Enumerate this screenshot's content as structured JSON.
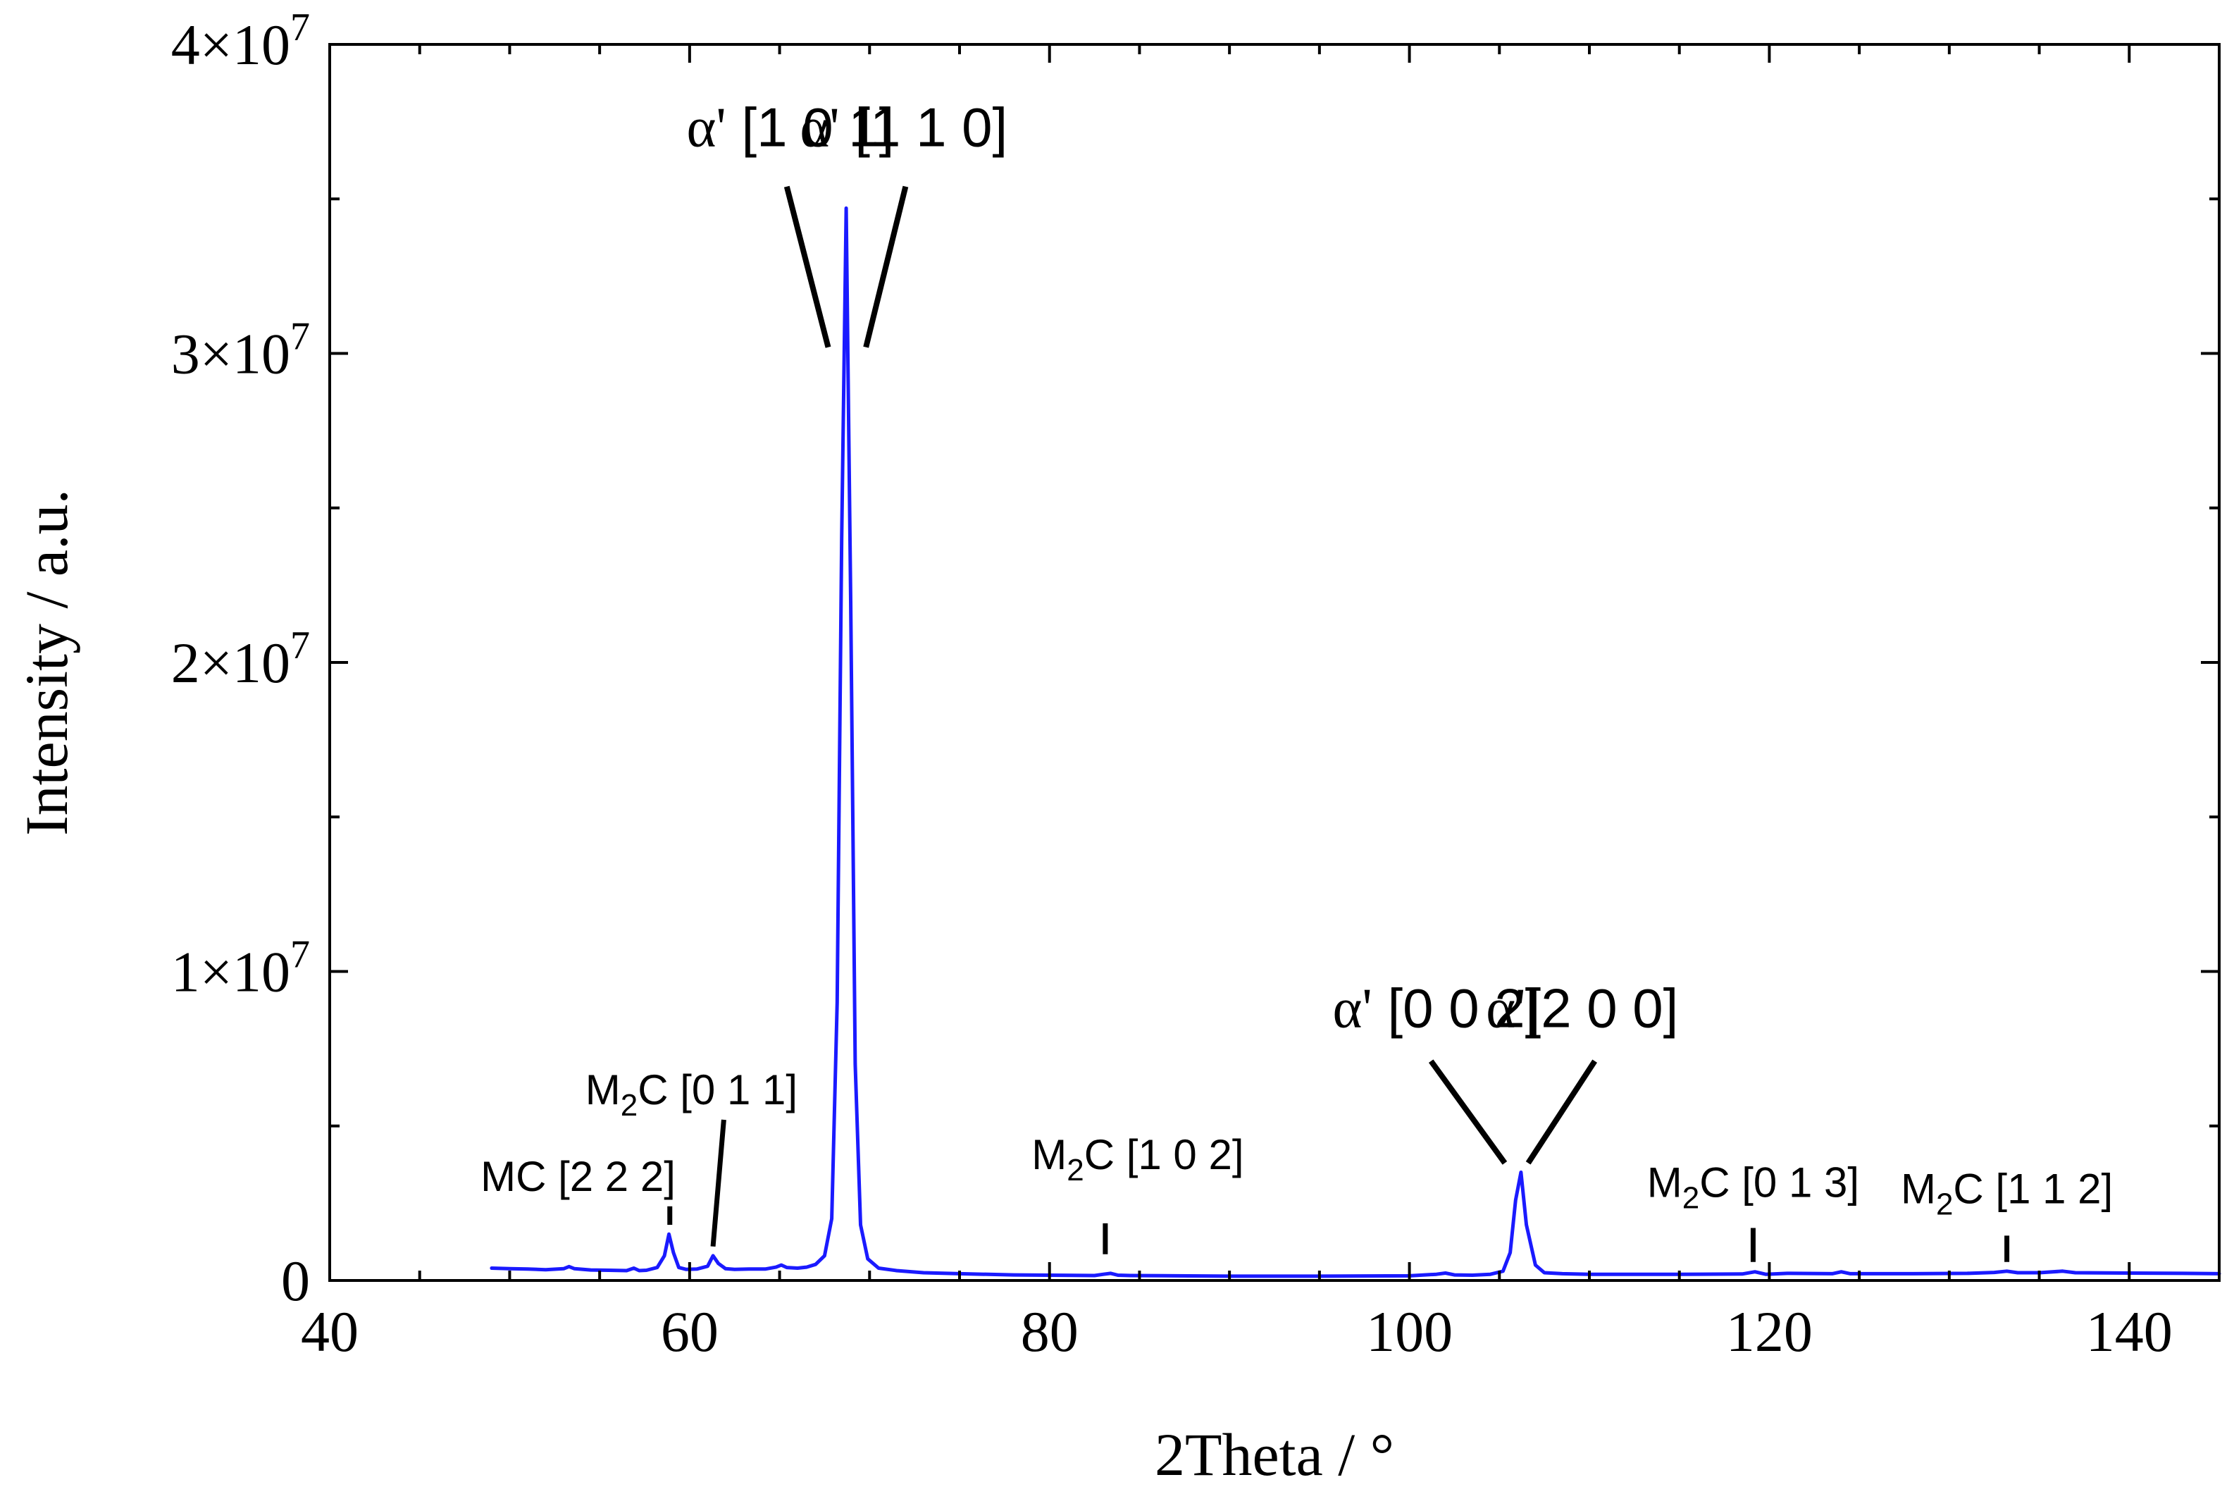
{
  "chart_data": {
    "type": "line",
    "xlabel": "2Theta / °",
    "ylabel": "Intensity / a.u.",
    "xlim": [
      40,
      145
    ],
    "ylim": [
      0,
      40000000
    ],
    "grid": false,
    "x_ticks": [
      40,
      60,
      80,
      100,
      120,
      140
    ],
    "x_tick_labels": [
      "40",
      "60",
      "80",
      "100",
      "120",
      "140"
    ],
    "y_ticks": [
      0,
      10000000,
      20000000,
      30000000,
      40000000
    ],
    "y_tick_labels": [
      {
        "mantissa": "0",
        "base": "",
        "exp": ""
      },
      {
        "mantissa": "1",
        "base": "×10",
        "exp": "7"
      },
      {
        "mantissa": "2",
        "base": "×10",
        "exp": "7"
      },
      {
        "mantissa": "3",
        "base": "×10",
        "exp": "7"
      },
      {
        "mantissa": "4",
        "base": "×10",
        "exp": "7"
      }
    ],
    "series": [
      {
        "color": "#1a1aff",
        "x": [
          49.0,
          50.0,
          51.0,
          52.0,
          53.0,
          53.3,
          53.6,
          54.5,
          55.5,
          56.5,
          56.9,
          57.2,
          57.6,
          58.2,
          58.6,
          58.85,
          59.1,
          59.4,
          59.8,
          60.4,
          61.0,
          61.3,
          61.6,
          62.0,
          62.5,
          63.3,
          64.2,
          64.8,
          65.1,
          65.4,
          66.0,
          66.5,
          67.0,
          67.5,
          67.9,
          68.2,
          68.45,
          68.7,
          68.95,
          69.2,
          69.5,
          69.9,
          70.5,
          71.5,
          73.0,
          75.0,
          78.0,
          80.0,
          82.5,
          83.0,
          83.4,
          83.8,
          84.5,
          87.0,
          90.0,
          95.0,
          100.0,
          101.5,
          102.0,
          102.5,
          103.5,
          104.5,
          105.2,
          105.6,
          105.9,
          106.2,
          106.5,
          107.0,
          107.5,
          108.5,
          110.0,
          115.0,
          118.5,
          119.2,
          119.8,
          121.0,
          123.5,
          124.0,
          124.5,
          128.0,
          131.0,
          132.5,
          133.2,
          133.8,
          135.0,
          136.3,
          137.0,
          140.0,
          143.0,
          145.0
        ],
        "y": [
          400000,
          380000,
          370000,
          350000,
          380000,
          450000,
          380000,
          340000,
          330000,
          320000,
          400000,
          320000,
          330000,
          420000,
          800000,
          1500000,
          900000,
          420000,
          360000,
          370000,
          460000,
          800000,
          550000,
          380000,
          360000,
          370000,
          370000,
          430000,
          500000,
          420000,
          400000,
          430000,
          520000,
          800000,
          2000000,
          9000000,
          24000000,
          34700000,
          22000000,
          7000000,
          1800000,
          700000,
          400000,
          320000,
          250000,
          220000,
          180000,
          170000,
          160000,
          200000,
          230000,
          170000,
          160000,
          150000,
          140000,
          140000,
          150000,
          200000,
          240000,
          180000,
          170000,
          200000,
          300000,
          900000,
          2600000,
          3500000,
          1800000,
          500000,
          250000,
          220000,
          200000,
          200000,
          210000,
          280000,
          200000,
          230000,
          220000,
          280000,
          220000,
          220000,
          230000,
          260000,
          300000,
          250000,
          250000,
          300000,
          250000,
          240000,
          230000,
          220000
        ]
      }
    ],
    "annotations": [
      {
        "id": "alpha-101",
        "greek": "α'",
        "text": " [1 0 1]",
        "label_x": 65.6,
        "label_y": 36700000,
        "line_from": [
          65.4,
          35400000
        ],
        "line_to": [
          67.7,
          30200000
        ],
        "style": "large"
      },
      {
        "id": "alpha-110",
        "greek": "α'",
        "text": " [1 1 0]",
        "label_x": 71.9,
        "label_y": 36700000,
        "line_from": [
          72.0,
          35400000
        ],
        "line_to": [
          69.8,
          30200000
        ],
        "style": "large"
      },
      {
        "id": "alpha-002",
        "greek": "α'",
        "text": " [0 0 2]",
        "label_x": 101.5,
        "label_y": 8200000,
        "line_from": [
          101.2,
          7100000
        ],
        "line_to": [
          105.3,
          3800000
        ],
        "style": "large"
      },
      {
        "id": "alpha-200",
        "greek": "α'",
        "text": "[2 0 0]",
        "label_x": 109.6,
        "label_y": 8200000,
        "line_from": [
          110.3,
          7100000
        ],
        "line_to": [
          106.6,
          3800000
        ],
        "style": "large"
      },
      {
        "id": "mc-222",
        "prefix": "MC",
        "sub": "",
        "text": " [2 2 2]",
        "label_x": 53.8,
        "label_y": 2900000,
        "line_from": [
          58.9,
          2400000
        ],
        "line_to": [
          58.9,
          1800000
        ],
        "style": "small"
      },
      {
        "id": "m2c-011",
        "prefix": "M",
        "sub": "2",
        "text": "C [0 1 1]",
        "label_x": 60.1,
        "label_y": 5700000,
        "line_from": [
          61.9,
          5200000
        ],
        "line_to": [
          61.3,
          1100000
        ],
        "style": "small"
      },
      {
        "id": "m2c-102",
        "prefix": "M",
        "sub": "2",
        "text": "C [1 0 2]",
        "label_x": 84.9,
        "label_y": 3600000,
        "line_from": [
          83.1,
          1850000
        ],
        "line_to": [
          83.1,
          850000
        ],
        "style": "small"
      },
      {
        "id": "m2c-013",
        "prefix": "M",
        "sub": "2",
        "text": "C [0 1 3]",
        "label_x": 119.1,
        "label_y": 2700000,
        "line_from": [
          119.1,
          1700000
        ],
        "line_to": [
          119.1,
          600000
        ],
        "style": "small"
      },
      {
        "id": "m2c-112",
        "prefix": "M",
        "sub": "2",
        "text": "C [1 1 2]",
        "label_x": 133.2,
        "label_y": 2500000,
        "line_from": [
          133.2,
          1450000
        ],
        "line_to": [
          133.2,
          600000
        ],
        "style": "small"
      }
    ]
  }
}
